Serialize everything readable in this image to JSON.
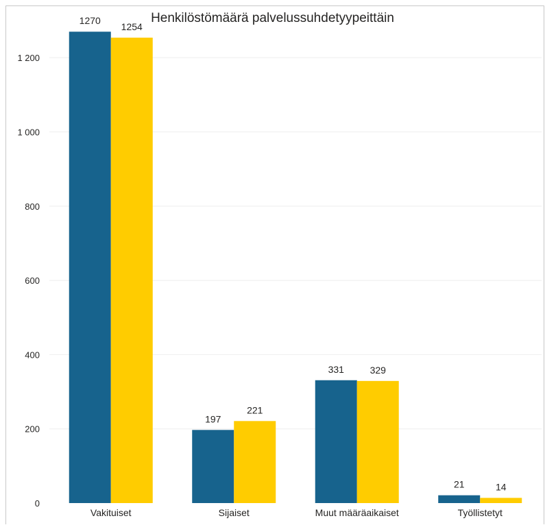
{
  "chart_data": {
    "type": "bar",
    "title": "Henkilöstömäärä palvelussuhdetyypeittäin",
    "xlabel": "",
    "ylabel": "",
    "categories": [
      "Vakituiset",
      "Sijaiset",
      "Muut määräaikaiset",
      "Työllistetyt"
    ],
    "series": [
      {
        "color": "#17638d",
        "values": [
          1270,
          197,
          331,
          21
        ]
      },
      {
        "color": "#ffcc00",
        "values": [
          1254,
          221,
          329,
          14
        ]
      }
    ],
    "ylim": [
      0,
      1300
    ],
    "yticks": [
      0,
      200,
      400,
      600,
      800,
      1000,
      1200
    ],
    "ytick_labels": [
      "0",
      "200",
      "400",
      "600",
      "800",
      "1 000",
      "1 200"
    ],
    "data_labels": [
      [
        "1270",
        "197",
        "331",
        "21"
      ],
      [
        "1254",
        "221",
        "329",
        "14"
      ]
    ],
    "grid": true,
    "legend": "none"
  }
}
